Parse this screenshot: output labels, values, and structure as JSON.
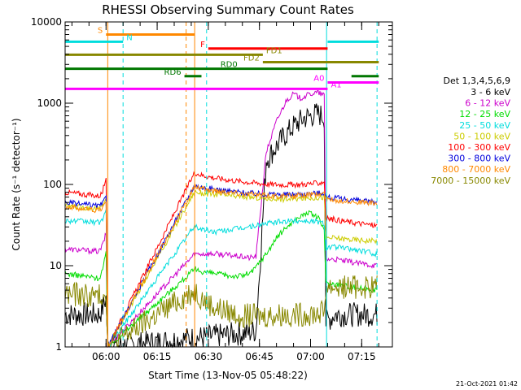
{
  "chart_data": {
    "type": "line",
    "title": "RHESSI Observing Summary Count Rates",
    "xlabel": "Start Time (13-Nov-05 05:48:22)",
    "ylabel": "Count Rate (s⁻¹ detector⁻¹)",
    "yscale": "log",
    "ylim": [
      1,
      10000
    ],
    "xlim": [
      -4,
      92
    ],
    "x_unit": "minutes after 05:52",
    "x_ticks": [
      {
        "label": "06:00",
        "t": 8
      },
      {
        "label": "06:15",
        "t": 23
      },
      {
        "label": "06:30",
        "t": 38
      },
      {
        "label": "06:45",
        "t": 53
      },
      {
        "label": "07:00",
        "t": 68
      },
      {
        "label": "07:15",
        "t": 83
      }
    ],
    "y_ticks": [
      {
        "label": "1",
        "v": 1
      },
      {
        "label": "10",
        "v": 10
      },
      {
        "label": "100",
        "v": 100
      },
      {
        "label": "1000",
        "v": 1000
      },
      {
        "label": "10000",
        "v": 10000
      }
    ],
    "legend_title": "Det 1,3,4,5,6,9",
    "legend_position": "right",
    "series": [
      {
        "name": "3 - 6 keV",
        "color": "#000000",
        "x": [
          -4,
          6,
          7,
          8,
          8.5,
          50,
          52,
          55,
          60,
          63,
          66,
          69,
          70,
          72,
          72.5,
          75,
          83,
          87.5
        ],
        "y": [
          2.5,
          2.5,
          3,
          4,
          1,
          1.5,
          1.6,
          200,
          380,
          520,
          650,
          720,
          740,
          680,
          2,
          2.5,
          2.5,
          2.5
        ]
      },
      {
        "name": "6 - 12 keV",
        "color": "#cc00cc",
        "x": [
          -4,
          6,
          7,
          8,
          8.5,
          34,
          36,
          40,
          44,
          47,
          50,
          52,
          55,
          58,
          61,
          63,
          65,
          68,
          70,
          72,
          72.5,
          75,
          80,
          87.5
        ],
        "y": [
          16,
          15,
          18,
          25,
          1,
          14,
          14,
          14,
          13.5,
          13,
          12.5,
          13,
          250,
          600,
          1100,
          1300,
          1150,
          1300,
          1350,
          1250,
          12,
          12,
          11,
          10
        ]
      },
      {
        "name": "12 - 25 keV",
        "color": "#00dd00",
        "x": [
          -4,
          6,
          7,
          8,
          8.5,
          34,
          36,
          40,
          44,
          48,
          51,
          53,
          55,
          58,
          61,
          64,
          67,
          70,
          72,
          72.5,
          75,
          80,
          87.5
        ],
        "y": [
          8,
          7,
          9,
          14,
          1,
          9,
          8.5,
          8,
          7.5,
          7.5,
          8.5,
          11,
          14,
          22,
          30,
          38,
          45,
          40,
          28,
          6,
          6,
          5.5,
          5
        ]
      },
      {
        "name": "25 - 50 keV",
        "color": "#00dddd",
        "x": [
          -4,
          6,
          7,
          8,
          8.5,
          34,
          36,
          40,
          45,
          50,
          55,
          60,
          65,
          70,
          72,
          72.5,
          75,
          80,
          87.5
        ],
        "y": [
          36,
          34,
          38,
          48,
          1,
          31,
          28,
          26,
          28,
          30,
          33,
          35,
          36,
          35,
          33,
          17,
          17,
          16,
          14
        ]
      },
      {
        "name": "50 - 100 keV",
        "color": "#cccc00",
        "x": [
          -4,
          6,
          7,
          8,
          8.5,
          34,
          36,
          40,
          45,
          50,
          55,
          60,
          65,
          70,
          72,
          72.5,
          75,
          80,
          87.5
        ],
        "y": [
          55,
          50,
          55,
          70,
          1,
          82,
          78,
          76,
          72,
          70,
          67,
          66,
          67,
          69,
          70,
          22,
          22,
          21,
          20
        ]
      },
      {
        "name": "100 - 300 keV",
        "color": "#ff0000",
        "x": [
          -4,
          6,
          7,
          8,
          8.5,
          34,
          36,
          40,
          45,
          50,
          55,
          60,
          65,
          70,
          72,
          72.5,
          75,
          80,
          87.5
        ],
        "y": [
          80,
          72,
          80,
          130,
          1,
          140,
          130,
          120,
          112,
          106,
          101,
          99,
          100,
          103,
          108,
          38,
          37,
          34,
          31
        ]
      },
      {
        "name": "300 - 800 keV",
        "color": "#0000dd",
        "x": [
          -4,
          6,
          7,
          8,
          8.5,
          34,
          36,
          40,
          45,
          50,
          55,
          60,
          65,
          70,
          72,
          72.5,
          75,
          80,
          87.5
        ],
        "y": [
          60,
          54,
          58,
          70,
          1,
          98,
          92,
          87,
          82,
          78,
          76,
          75,
          76,
          78,
          80,
          70,
          68,
          65,
          60
        ]
      },
      {
        "name": "800 - 7000 keV",
        "color": "#ff8800",
        "x": [
          -4,
          6,
          7,
          8,
          8.5,
          34,
          36,
          40,
          45,
          50,
          55,
          60,
          65,
          70,
          72,
          72.5,
          75,
          80,
          87.5
        ],
        "y": [
          53,
          48,
          52,
          62,
          1,
          95,
          88,
          84,
          80,
          76,
          73,
          72,
          73,
          75,
          77,
          66,
          64,
          62,
          58
        ]
      },
      {
        "name": "7000 - 15000 keV",
        "color": "#888800",
        "x": [
          -4,
          6,
          7,
          8,
          8.5,
          34,
          36,
          40,
          45,
          50,
          55,
          60,
          65,
          70,
          72,
          72.5,
          75,
          80,
          87.5
        ],
        "y": [
          4.5,
          4.2,
          4.5,
          5,
          1,
          5,
          4,
          3,
          2.6,
          2.4,
          2.4,
          2.5,
          2.5,
          2.6,
          2.7,
          5.5,
          5.5,
          5.5,
          5.5
        ]
      }
    ],
    "annotations": [
      {
        "text": "S",
        "color": "#ff8800",
        "y": 7000,
        "x_start": 8,
        "x_end": 34,
        "label_side": "left"
      },
      {
        "text": "N",
        "color": "#00dddd",
        "y": 5700,
        "x_start": -4,
        "x_end": 13,
        "label_side": "right"
      },
      {
        "text": "N",
        "color": "#00dddd",
        "y": 5700,
        "x_start": 73,
        "x_end": 88,
        "label_side": "none"
      },
      {
        "text": "F",
        "color": "#ff0000",
        "y": 4700,
        "x_start": 38,
        "x_end": 73,
        "label_side": "left"
      },
      {
        "text": "FD1",
        "color": "#888800",
        "y": 3950,
        "x_start": -4,
        "x_end": 54,
        "label_side": "right"
      },
      {
        "text": "FD2",
        "color": "#888800",
        "y": 3200,
        "x_start": 54,
        "x_end": 88,
        "label_side": "left"
      },
      {
        "text": "RD0",
        "color": "#007700",
        "y": 2650,
        "x_start": -4,
        "x_end": 73,
        "label_side": "center"
      },
      {
        "text": "RD6",
        "color": "#007700",
        "y": 2150,
        "x_start": 31,
        "x_end": 36,
        "label_side": "left"
      },
      {
        "text": "RD6",
        "color": "#007700",
        "y": 2150,
        "x_start": 80,
        "x_end": 88,
        "label_side": "none"
      },
      {
        "text": "A0",
        "color": "#ff00ff",
        "y": 1800,
        "x_start": 73,
        "x_end": 88,
        "label_side": "left"
      },
      {
        "text": "A1",
        "color": "#ff00ff",
        "y": 1500,
        "x_start": -4,
        "x_end": 73,
        "label_side": "right"
      }
    ],
    "vertical_lines": [
      {
        "x": 8.5,
        "color": "#ff8800",
        "style": "solid"
      },
      {
        "x": 13,
        "color": "#00dddd",
        "style": "dashed"
      },
      {
        "x": 31.5,
        "color": "#ff8800",
        "style": "dashed"
      },
      {
        "x": 34,
        "color": "#ff8800",
        "style": "solid"
      },
      {
        "x": 37.5,
        "color": "#00dddd",
        "style": "dashed"
      },
      {
        "x": 72.7,
        "color": "#00dddd",
        "style": "solid"
      },
      {
        "x": 87.5,
        "color": "#00dddd",
        "style": "dashed"
      }
    ]
  },
  "footer": {
    "date_stamp": "21-Oct-2021 01:42"
  }
}
